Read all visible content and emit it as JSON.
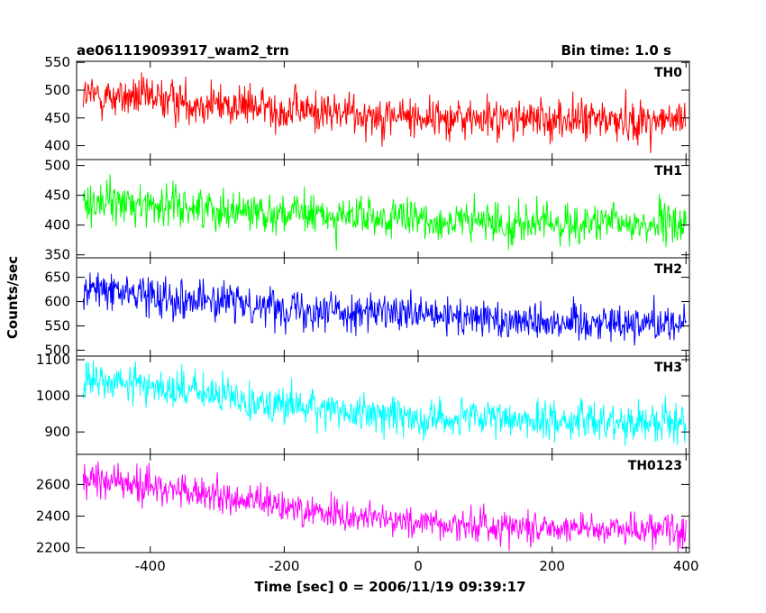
{
  "header": {
    "title": "ae061119093917_wam2_trn",
    "bin_time": "Bin time: 1.0 s"
  },
  "chart_data": {
    "type": "line",
    "xlabel": "Time [sec] 0 = 2006/11/19 09:39:17",
    "ylabel": "Counts/sec",
    "xlim": [
      -510,
      405
    ],
    "xticks": [
      -400,
      -200,
      0,
      200,
      400
    ],
    "x_step": 1.0,
    "grid": false,
    "panels": [
      {
        "name": "TH0",
        "color": "#ff0000",
        "ylim": [
          375,
          552
        ],
        "yticks": [
          400,
          450,
          500,
          550
        ],
        "trend": {
          "x": [
            -500,
            -400,
            -300,
            -200,
            -100,
            0,
            100,
            200,
            300,
            400
          ],
          "y": [
            490,
            485,
            475,
            465,
            458,
            452,
            448,
            447,
            446,
            444
          ]
        },
        "noise": 27
      },
      {
        "name": "TH1",
        "color": "#00ff00",
        "ylim": [
          345,
          510
        ],
        "yticks": [
          350,
          400,
          450,
          500
        ],
        "trend": {
          "x": [
            -500,
            -400,
            -300,
            -200,
            -100,
            0,
            100,
            200,
            300,
            400
          ],
          "y": [
            440,
            435,
            428,
            420,
            413,
            408,
            404,
            402,
            402,
            401
          ]
        },
        "noise": 24
      },
      {
        "name": "TH2",
        "color": "#0000ff",
        "ylim": [
          488,
          690
        ],
        "yticks": [
          500,
          550,
          600,
          650
        ],
        "trend": {
          "x": [
            -500,
            -400,
            -300,
            -200,
            -100,
            0,
            100,
            200,
            300,
            400
          ],
          "y": [
            625,
            615,
            600,
            590,
            580,
            570,
            565,
            560,
            558,
            556
          ]
        },
        "noise": 28
      },
      {
        "name": "TH3",
        "color": "#00ffff",
        "ylim": [
          838,
          1110
        ],
        "yticks": [
          900,
          1000,
          1100
        ],
        "trend": {
          "x": [
            -500,
            -400,
            -300,
            -200,
            -100,
            0,
            100,
            200,
            300,
            400
          ],
          "y": [
            1040,
            1030,
            1000,
            975,
            955,
            940,
            935,
            932,
            930,
            928
          ]
        },
        "noise": 38
      },
      {
        "name": "TH0123",
        "color": "#ff00ff",
        "ylim": [
          2170,
          2790
        ],
        "yticks": [
          2200,
          2400,
          2600
        ],
        "trend": {
          "x": [
            -500,
            -400,
            -300,
            -200,
            -100,
            0,
            100,
            200,
            300,
            400
          ],
          "y": [
            2640,
            2590,
            2520,
            2460,
            2400,
            2360,
            2340,
            2330,
            2325,
            2320
          ]
        },
        "noise": 75
      }
    ]
  }
}
